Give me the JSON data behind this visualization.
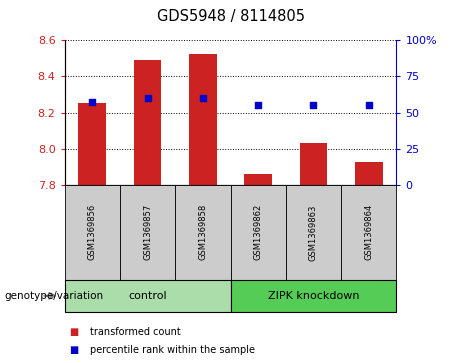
{
  "title": "GDS5948 / 8114805",
  "samples": [
    "GSM1369856",
    "GSM1369857",
    "GSM1369858",
    "GSM1369862",
    "GSM1369863",
    "GSM1369864"
  ],
  "transformed_counts": [
    8.25,
    8.49,
    8.52,
    7.86,
    8.03,
    7.93
  ],
  "percentile_ranks": [
    57,
    60,
    60,
    55,
    55,
    55
  ],
  "bar_bottom": 7.8,
  "ylim_left": [
    7.8,
    8.6
  ],
  "ylim_right": [
    0,
    100
  ],
  "yticks_left": [
    7.8,
    8.0,
    8.2,
    8.4,
    8.6
  ],
  "yticks_right": [
    0,
    25,
    50,
    75,
    100
  ],
  "yticklabels_right": [
    "0",
    "25",
    "50",
    "75",
    "100%"
  ],
  "bar_color": "#cc2222",
  "dot_color": "#0000cc",
  "groups": [
    {
      "label": "control",
      "indices": [
        0,
        1,
        2
      ],
      "color": "#aaddaa"
    },
    {
      "label": "ZIPK knockdown",
      "indices": [
        3,
        4,
        5
      ],
      "color": "#55cc55"
    }
  ],
  "legend_items": [
    {
      "label": "transformed count",
      "color": "#cc2222"
    },
    {
      "label": "percentile rank within the sample",
      "color": "#0000cc"
    }
  ],
  "genotype_label": "genotype/variation",
  "tick_label_color_left": "#cc2222",
  "tick_label_color_right": "#0000cc",
  "bar_width": 0.5
}
